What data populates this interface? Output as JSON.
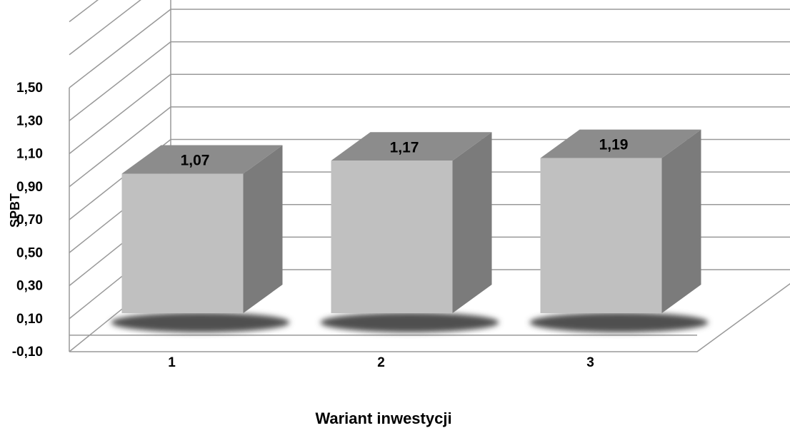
{
  "chart_data": {
    "type": "bar",
    "style": "3d-column",
    "categories": [
      "1",
      "2",
      "3"
    ],
    "values": [
      1.07,
      1.17,
      1.19
    ],
    "value_labels": [
      "1,07",
      "1,17",
      "1,19"
    ],
    "ytick_labels": [
      "-0,10",
      "0,10",
      "0,30",
      "0,50",
      "0,70",
      "0,90",
      "1,10",
      "1,30",
      "1,50"
    ],
    "yticks": [
      -0.1,
      0.1,
      0.3,
      0.5,
      0.7,
      0.9,
      1.1,
      1.3,
      1.5
    ],
    "ylim": [
      -0.1,
      1.5
    ],
    "xlabel": "Wariant inwestycji",
    "ylabel": "SPBT",
    "title": "",
    "grid": true,
    "colors": {
      "bar_front": "#c0c0c0",
      "bar_side": "#7b7b7b",
      "bar_top": "#8c8c8c",
      "shadow": "#505050",
      "grid": "#999999"
    }
  }
}
